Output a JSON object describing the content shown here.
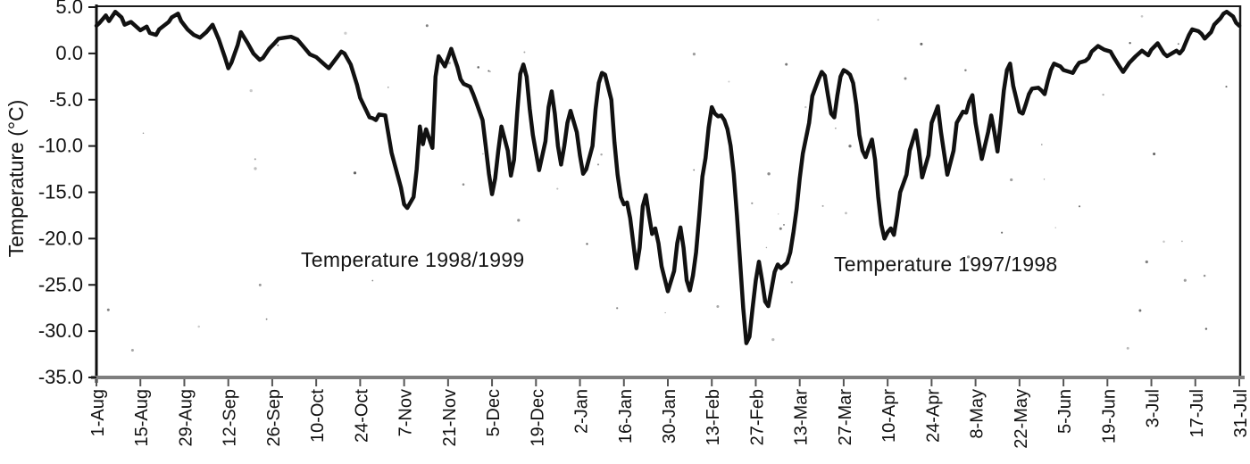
{
  "page": {
    "background": "#ffffff"
  },
  "chart_data": {
    "type": "line",
    "title": "",
    "xlabel": "",
    "ylabel": "Temperature (°C)",
    "ylim": [
      -35,
      5
    ],
    "ytick_step": 5,
    "y_tick_labels": [
      "5.0",
      "0.0",
      "-5.0",
      "-10.0",
      "-15.0",
      "-20.0",
      "-25.0",
      "-30.0",
      "-35.0"
    ],
    "x_tick_labels": [
      "1-Aug",
      "15-Aug",
      "29-Aug",
      "12-Sep",
      "26-Sep",
      "10-Oct",
      "24-Oct",
      "7-Nov",
      "21-Nov",
      "5-Dec",
      "19-Dec",
      "2-Jan",
      "16-Jan",
      "30-Jan",
      "13-Feb",
      "27-Feb",
      "13-Mar",
      "27-Mar",
      "10-Apr",
      "24-Apr",
      "8-May",
      "22-May",
      "5-Jun",
      "19-Jun",
      "3-Jul",
      "17-Jul",
      "31-Jul"
    ],
    "x_tick_interval_days": 14,
    "grid": false,
    "legend_position": "none",
    "line_color": "#111111",
    "axis_color": "#7e7e7e",
    "annotations": [
      {
        "text": "Temperature 1998/1999",
        "day": 104,
        "temp": -22.5
      },
      {
        "text": "Temperature 1997/1998",
        "day": 277,
        "temp": -22.5
      }
    ],
    "series": [
      {
        "name": "temperature",
        "points": [
          [
            0,
            3.0
          ],
          [
            1,
            3.3
          ],
          [
            3,
            4.1
          ],
          [
            4,
            3.5
          ],
          [
            6,
            4.5
          ],
          [
            8,
            3.9
          ],
          [
            9,
            3.1
          ],
          [
            11,
            3.4
          ],
          [
            13,
            2.8
          ],
          [
            14,
            2.5
          ],
          [
            16,
            2.9
          ],
          [
            17,
            2.2
          ],
          [
            19,
            2.0
          ],
          [
            20,
            2.6
          ],
          [
            23,
            3.4
          ],
          [
            24,
            3.9
          ],
          [
            26,
            4.3
          ],
          [
            27,
            3.5
          ],
          [
            29,
            2.6
          ],
          [
            31,
            2.0
          ],
          [
            33,
            1.7
          ],
          [
            35,
            2.3
          ],
          [
            37,
            3.1
          ],
          [
            39,
            1.5
          ],
          [
            41,
            -0.5
          ],
          [
            42,
            -1.6
          ],
          [
            43,
            -1.0
          ],
          [
            45,
            0.9
          ],
          [
            46,
            2.3
          ],
          [
            48,
            1.2
          ],
          [
            50,
            0.0
          ],
          [
            52,
            -0.7
          ],
          [
            53,
            -0.5
          ],
          [
            55,
            0.5
          ],
          [
            57,
            1.2
          ],
          [
            58,
            1.6
          ],
          [
            60,
            1.7
          ],
          [
            62,
            1.8
          ],
          [
            64,
            1.5
          ],
          [
            66,
            0.7
          ],
          [
            68,
            -0.1
          ],
          [
            70,
            -0.4
          ],
          [
            72,
            -1.0
          ],
          [
            74,
            -1.6
          ],
          [
            76,
            -0.7
          ],
          [
            78,
            0.2
          ],
          [
            79,
            0.0
          ],
          [
            81,
            -1.2
          ],
          [
            83,
            -3.4
          ],
          [
            84,
            -4.8
          ],
          [
            86,
            -6.2
          ],
          [
            87,
            -6.9
          ],
          [
            88,
            -7.0
          ],
          [
            89,
            -7.2
          ],
          [
            90,
            -6.6
          ],
          [
            92,
            -6.7
          ],
          [
            94,
            -10.7
          ],
          [
            95,
            -12.0
          ],
          [
            97,
            -14.5
          ],
          [
            98,
            -16.3
          ],
          [
            99,
            -16.7
          ],
          [
            101,
            -15.5
          ],
          [
            102,
            -12.5
          ],
          [
            103,
            -7.9
          ],
          [
            104,
            -9.8
          ],
          [
            105,
            -8.2
          ],
          [
            107,
            -10.2
          ],
          [
            108,
            -2.5
          ],
          [
            109,
            -0.3
          ],
          [
            111,
            -1.4
          ],
          [
            112,
            -0.5
          ],
          [
            113,
            0.5
          ],
          [
            115,
            -1.5
          ],
          [
            116,
            -2.8
          ],
          [
            117,
            -3.3
          ],
          [
            119,
            -3.6
          ],
          [
            120,
            -4.4
          ],
          [
            121,
            -5.3
          ],
          [
            123,
            -7.2
          ],
          [
            124,
            -10.0
          ],
          [
            125,
            -13.0
          ],
          [
            126,
            -15.2
          ],
          [
            127,
            -13.5
          ],
          [
            128,
            -10.5
          ],
          [
            129,
            -7.9
          ],
          [
            131,
            -10.5
          ],
          [
            132,
            -13.2
          ],
          [
            133,
            -11.5
          ],
          [
            134,
            -6.5
          ],
          [
            135,
            -2.2
          ],
          [
            136,
            -1.2
          ],
          [
            137,
            -2.5
          ],
          [
            138,
            -6.0
          ],
          [
            139,
            -8.8
          ],
          [
            141,
            -12.6
          ],
          [
            143,
            -9.5
          ],
          [
            144,
            -5.8
          ],
          [
            145,
            -4.1
          ],
          [
            146,
            -6.5
          ],
          [
            147,
            -10.0
          ],
          [
            148,
            -12.0
          ],
          [
            149,
            -10.0
          ],
          [
            150,
            -7.5
          ],
          [
            151,
            -6.2
          ],
          [
            153,
            -8.5
          ],
          [
            154,
            -11.0
          ],
          [
            155,
            -13.0
          ],
          [
            156,
            -12.5
          ],
          [
            158,
            -10.0
          ],
          [
            159,
            -6.0
          ],
          [
            160,
            -3.2
          ],
          [
            161,
            -2.1
          ],
          [
            162,
            -2.3
          ],
          [
            164,
            -5.0
          ],
          [
            165,
            -9.6
          ],
          [
            166,
            -13.1
          ],
          [
            167,
            -15.5
          ],
          [
            168,
            -16.3
          ],
          [
            169,
            -16.1
          ],
          [
            170,
            -17.8
          ],
          [
            171,
            -20.5
          ],
          [
            172,
            -23.2
          ],
          [
            173,
            -21.0
          ],
          [
            174,
            -16.5
          ],
          [
            175,
            -15.3
          ],
          [
            176,
            -17.5
          ],
          [
            177,
            -19.5
          ],
          [
            178,
            -18.9
          ],
          [
            179,
            -20.5
          ],
          [
            180,
            -23.0
          ],
          [
            182,
            -25.7
          ],
          [
            184,
            -23.5
          ],
          [
            185,
            -20.5
          ],
          [
            186,
            -18.8
          ],
          [
            187,
            -21.0
          ],
          [
            188,
            -24.5
          ],
          [
            189,
            -25.6
          ],
          [
            190,
            -24.0
          ],
          [
            191,
            -21.5
          ],
          [
            192,
            -17.5
          ],
          [
            193,
            -13.3
          ],
          [
            194,
            -11.3
          ],
          [
            195,
            -8.0
          ],
          [
            196,
            -5.8
          ],
          [
            197,
            -6.5
          ],
          [
            198,
            -6.8
          ],
          [
            199,
            -6.7
          ],
          [
            200,
            -7.2
          ],
          [
            201,
            -8.2
          ],
          [
            202,
            -10.0
          ],
          [
            203,
            -13.0
          ],
          [
            204,
            -17.5
          ],
          [
            205,
            -22.5
          ],
          [
            206,
            -27.5
          ],
          [
            207,
            -31.3
          ],
          [
            208,
            -30.6
          ],
          [
            209,
            -27.5
          ],
          [
            210,
            -24.5
          ],
          [
            211,
            -22.5
          ],
          [
            212,
            -24.5
          ],
          [
            213,
            -26.8
          ],
          [
            214,
            -27.3
          ],
          [
            215,
            -25.5
          ],
          [
            216,
            -23.6
          ],
          [
            217,
            -22.8
          ],
          [
            218,
            -23.2
          ],
          [
            220,
            -22.6
          ],
          [
            221,
            -21.5
          ],
          [
            222,
            -19.3
          ],
          [
            223,
            -16.8
          ],
          [
            224,
            -13.5
          ],
          [
            225,
            -10.8
          ],
          [
            227,
            -7.5
          ],
          [
            228,
            -4.6
          ],
          [
            230,
            -2.8
          ],
          [
            231,
            -2.0
          ],
          [
            232,
            -2.4
          ],
          [
            233,
            -4.5
          ],
          [
            234,
            -6.5
          ],
          [
            235,
            -6.9
          ],
          [
            236,
            -4.5
          ],
          [
            237,
            -2.5
          ],
          [
            238,
            -1.8
          ],
          [
            239,
            -2.0
          ],
          [
            240,
            -2.3
          ],
          [
            241,
            -3.2
          ],
          [
            242,
            -5.5
          ],
          [
            243,
            -8.8
          ],
          [
            244,
            -10.5
          ],
          [
            245,
            -11.2
          ],
          [
            246,
            -10.2
          ],
          [
            247,
            -9.3
          ],
          [
            248,
            -11.5
          ],
          [
            249,
            -15.5
          ],
          [
            250,
            -18.5
          ],
          [
            251,
            -20.0
          ],
          [
            252,
            -19.3
          ],
          [
            253,
            -18.9
          ],
          [
            254,
            -19.6
          ],
          [
            255,
            -17.5
          ],
          [
            256,
            -15.0
          ],
          [
            258,
            -13.1
          ],
          [
            259,
            -10.5
          ],
          [
            261,
            -8.3
          ],
          [
            262,
            -10.5
          ],
          [
            263,
            -13.4
          ],
          [
            265,
            -11.0
          ],
          [
            266,
            -7.5
          ],
          [
            268,
            -5.7
          ],
          [
            269,
            -8.5
          ],
          [
            271,
            -13.1
          ],
          [
            273,
            -10.5
          ],
          [
            274,
            -7.5
          ],
          [
            276,
            -6.3
          ],
          [
            277,
            -6.4
          ],
          [
            278,
            -5.2
          ],
          [
            279,
            -4.5
          ],
          [
            280,
            -7.5
          ],
          [
            282,
            -11.4
          ],
          [
            284,
            -8.5
          ],
          [
            285,
            -6.7
          ],
          [
            286,
            -8.5
          ],
          [
            287,
            -10.6
          ],
          [
            288,
            -7.5
          ],
          [
            289,
            -4.0
          ],
          [
            290,
            -1.8
          ],
          [
            291,
            -1.1
          ],
          [
            292,
            -3.5
          ],
          [
            294,
            -6.3
          ],
          [
            295,
            -6.5
          ],
          [
            296,
            -5.5
          ],
          [
            297,
            -4.4
          ],
          [
            298,
            -3.8
          ],
          [
            300,
            -3.7
          ],
          [
            301,
            -4.0
          ],
          [
            302,
            -4.4
          ],
          [
            303,
            -3.0
          ],
          [
            304,
            -1.8
          ],
          [
            305,
            -1.1
          ],
          [
            307,
            -1.4
          ],
          [
            308,
            -1.8
          ],
          [
            310,
            -2.0
          ],
          [
            311,
            -2.1
          ],
          [
            312,
            -1.5
          ],
          [
            313,
            -1.0
          ],
          [
            315,
            -0.8
          ],
          [
            316,
            -0.5
          ],
          [
            317,
            0.2
          ],
          [
            319,
            0.8
          ],
          [
            320,
            0.6
          ],
          [
            321,
            0.4
          ],
          [
            323,
            0.2
          ],
          [
            324,
            -0.4
          ],
          [
            326,
            -1.5
          ],
          [
            327,
            -2.0
          ],
          [
            329,
            -1.0
          ],
          [
            331,
            -0.3
          ],
          [
            333,
            0.3
          ],
          [
            335,
            -0.2
          ],
          [
            336,
            0.4
          ],
          [
            338,
            1.1
          ],
          [
            340,
            0.0
          ],
          [
            341,
            -0.3
          ],
          [
            343,
            0.1
          ],
          [
            344,
            0.3
          ],
          [
            345,
            0.0
          ],
          [
            346,
            0.4
          ],
          [
            347,
            1.2
          ],
          [
            348,
            2.0
          ],
          [
            349,
            2.6
          ],
          [
            351,
            2.4
          ],
          [
            352,
            2.1
          ],
          [
            353,
            1.6
          ],
          [
            355,
            2.3
          ],
          [
            356,
            3.1
          ],
          [
            358,
            3.8
          ],
          [
            359,
            4.3
          ],
          [
            360,
            4.5
          ],
          [
            362,
            4.0
          ],
          [
            363,
            3.3
          ],
          [
            364,
            3.0
          ]
        ]
      }
    ]
  }
}
